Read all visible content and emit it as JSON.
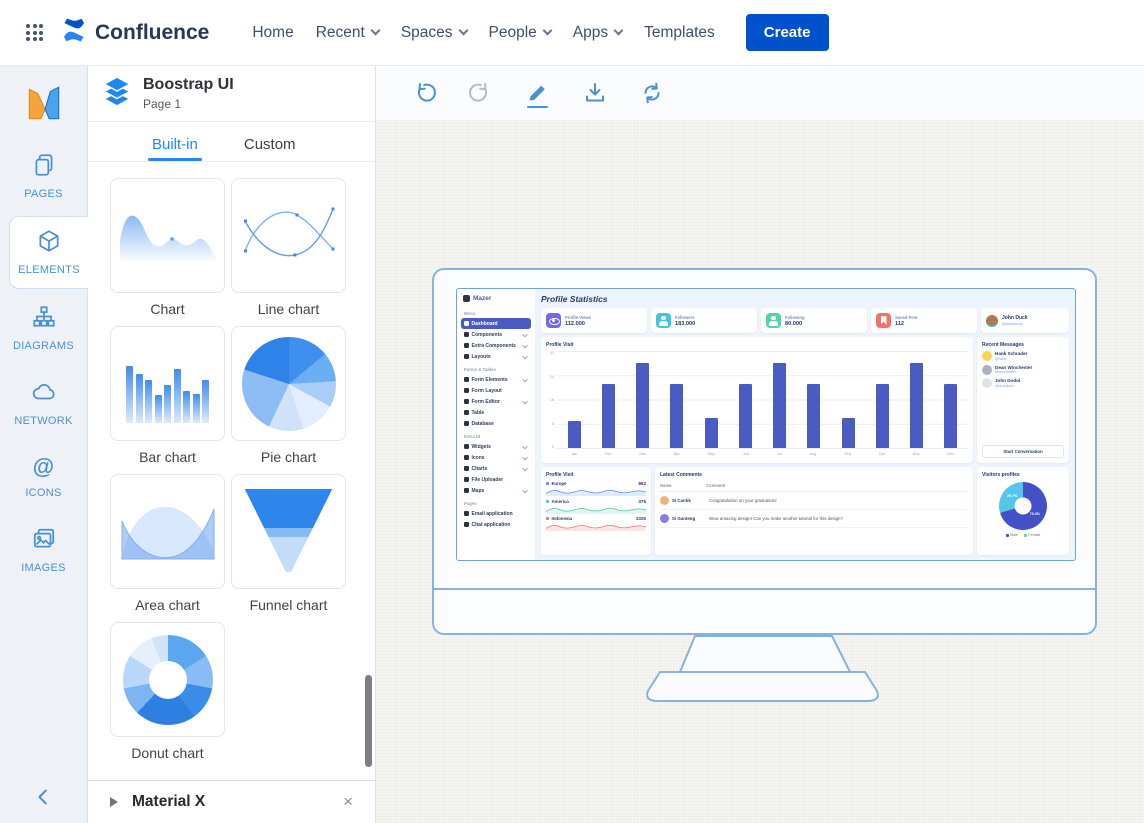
{
  "nav": {
    "brand": "Confluence",
    "items": [
      {
        "label": "Home",
        "menu": false
      },
      {
        "label": "Recent",
        "menu": true
      },
      {
        "label": "Spaces",
        "menu": true
      },
      {
        "label": "People",
        "menu": true
      },
      {
        "label": "Apps",
        "menu": true
      },
      {
        "label": "Templates",
        "menu": false
      }
    ],
    "create_label": "Create",
    "accent_color": "#0052CC"
  },
  "rail": {
    "items": [
      {
        "label": "PAGES"
      },
      {
        "label": "ELEMENTS",
        "active": true
      },
      {
        "label": "DIAGRAMS"
      },
      {
        "label": "NETWORK"
      },
      {
        "label": "ICONS"
      },
      {
        "label": "IMAGES"
      }
    ],
    "accent_color": "#4a90d2"
  },
  "panel": {
    "title": "Boostrap UI",
    "page_label": "Page 1",
    "tabs": [
      {
        "label": "Built-in",
        "active": true
      },
      {
        "label": "Custom",
        "active": false
      }
    ],
    "active_tab_color": "#2684FF",
    "items": [
      "Chart",
      "Line chart",
      "Bar chart",
      "Pie chart",
      "Area chart",
      "Funnel chart",
      "Donut chart"
    ],
    "footer": {
      "label": "Material X",
      "close_glyph": "×"
    }
  },
  "toolbar": {
    "icons": [
      "undo",
      "redo",
      "edit",
      "download",
      "refresh"
    ]
  },
  "dashboard": {
    "brand": "Mazer",
    "menu": [
      {
        "cls": "sec",
        "label": "Menu"
      },
      {
        "cls": "item active",
        "label": "Dashboard"
      },
      {
        "cls": "item caret",
        "label": "Components"
      },
      {
        "cls": "item caret",
        "label": "Extra Components"
      },
      {
        "cls": "item caret",
        "label": "Layouts"
      },
      {
        "cls": "sec",
        "label": "Forms & Tables"
      },
      {
        "cls": "item caret",
        "label": "Form Elements"
      },
      {
        "cls": "item",
        "label": "Form Layout"
      },
      {
        "cls": "item caret",
        "label": "Form Editor"
      },
      {
        "cls": "item",
        "label": "Table"
      },
      {
        "cls": "item",
        "label": "Database"
      },
      {
        "cls": "sec",
        "label": "Extra UI"
      },
      {
        "cls": "item caret",
        "label": "Widgets"
      },
      {
        "cls": "item caret",
        "label": "Icons"
      },
      {
        "cls": "item caret",
        "label": "Charts"
      },
      {
        "cls": "item",
        "label": "File Uploader"
      },
      {
        "cls": "item caret",
        "label": "Maps"
      },
      {
        "cls": "sec",
        "label": "Pages"
      },
      {
        "cls": "item",
        "label": "Email application"
      },
      {
        "cls": "item",
        "label": "Chat application"
      }
    ],
    "heading": "Profile Statistics",
    "stats": [
      {
        "label": "Profile Views",
        "value": "112.000",
        "icon": "eye",
        "color": "#7367f0"
      },
      {
        "label": "Followers",
        "value": "183.000",
        "icon": "person",
        "color": "#3fc5e0"
      },
      {
        "label": "Following",
        "value": "80.000",
        "icon": "person",
        "color": "#53d3a8"
      },
      {
        "label": "Saved Post",
        "value": "112",
        "icon": "bookmark",
        "color": "#f2726f"
      }
    ],
    "profile_card": {
      "name": "John Duck",
      "handle": "@johnducky",
      "avatar_color": "#b07a4e"
    },
    "profile_visit_chart": {
      "title": "Profile Visit",
      "months": [
        "Jan",
        "Feb",
        "Mar",
        "Apr",
        "May",
        "Jun",
        "Jul",
        "Aug",
        "Sep",
        "Oct",
        "Nov",
        "Dec"
      ],
      "values": [
        9,
        21,
        28,
        21,
        10,
        21,
        28,
        21,
        10,
        21,
        28,
        21
      ],
      "yticks": [
        32,
        24,
        16,
        8,
        0
      ],
      "bar_color": "#4a5bc4"
    },
    "recent_messages": {
      "title": "Recent Messages",
      "users": [
        {
          "name": "Hank Schrader",
          "handle": "@hank",
          "avatar_color": "#ffd15c"
        },
        {
          "name": "Dean Winchester",
          "handle": "@winchester",
          "avatar_color": "#aab3bd"
        },
        {
          "name": "John Dodol",
          "handle": "@dodoljohn",
          "avatar_color": "#dfe3e8"
        }
      ],
      "button_label": "Start Conversation"
    },
    "regions_card": {
      "title": "Profile Visit",
      "rows": [
        {
          "name": "Europe",
          "value": "862",
          "cls": "eu",
          "color": "#5b8ff9"
        },
        {
          "name": "America",
          "value": "375",
          "cls": "am",
          "color": "#4fc99b"
        },
        {
          "name": "Indonesia",
          "value": "1025",
          "cls": "in",
          "color": "#f0716e"
        }
      ]
    },
    "comments": {
      "title": "Latest Comments",
      "headers": [
        "Name",
        "Comment"
      ],
      "rows": [
        {
          "name": "Si Cantik",
          "text": "Congratulation on your graduation!",
          "avatar_color": "#f0b27a"
        },
        {
          "name": "Si Ganteng",
          "text": "Wow amazing design! Can you make another tutorial for this design?",
          "avatar_color": "#8d7ae0"
        }
      ]
    },
    "visitors": {
      "title": "Visitors profiles",
      "segments": [
        {
          "label": "70.3%",
          "value": 70.3,
          "color": "#4350c8"
        },
        {
          "label": "29.7%",
          "value": 29.7,
          "color": "#55c6ea"
        }
      ],
      "legend": [
        {
          "label": "Male",
          "color": "#4350c8"
        },
        {
          "label": "Female",
          "color": "#55c6ea"
        }
      ]
    }
  },
  "chart_data": [
    {
      "type": "bar",
      "title": "Profile Visit",
      "categories": [
        "Jan",
        "Feb",
        "Mar",
        "Apr",
        "May",
        "Jun",
        "Jul",
        "Aug",
        "Sep",
        "Oct",
        "Nov",
        "Dec"
      ],
      "values": [
        9,
        21,
        28,
        21,
        10,
        21,
        28,
        21,
        10,
        21,
        28,
        21
      ],
      "ylim": [
        0,
        32
      ],
      "yticks": [
        0,
        8,
        16,
        24,
        32
      ],
      "series_color": "#4a5bc4"
    },
    {
      "type": "area",
      "title": "Profile Visit (regions)",
      "series": [
        {
          "name": "Europe",
          "total": 862
        },
        {
          "name": "America",
          "total": 375
        },
        {
          "name": "Indonesia",
          "total": 1025
        }
      ]
    },
    {
      "type": "pie",
      "title": "Visitors profiles",
      "labels": [
        "Male",
        "Female"
      ],
      "values": [
        70.3,
        29.7
      ]
    }
  ]
}
